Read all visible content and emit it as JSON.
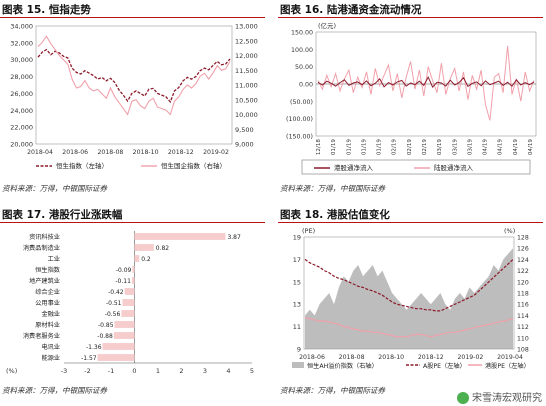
{
  "panels": {
    "p15": {
      "title": "图表 15. 恒指走势",
      "source": "资料来源：万得，中银国际证券"
    },
    "p16": {
      "title": "图表 16. 陆港通资金流动情况",
      "source": "资料来源：万得，中银国际证券"
    },
    "p17": {
      "title": "图表 17. 港股行业涨跌幅",
      "source": "资料来源：万得，中银国际证券"
    },
    "p18": {
      "title": "图表 18. 港股估值变化",
      "source": "资料来源：万得，中银国际证券"
    }
  },
  "watermark": "宋雪涛宏观研究",
  "chart_data": [
    {
      "id": "hsi-trend",
      "type": "line",
      "x_ticks": [
        "2018-04",
        "2018-06",
        "2018-08",
        "2018-10",
        "2018-12",
        "2019-02"
      ],
      "ylim_left": [
        20000,
        34000
      ],
      "yticks_left": [
        "34,000",
        "32,000",
        "30,000",
        "28,000",
        "26,000",
        "24,000",
        "22,000",
        "20,000"
      ],
      "ylim_right": [
        9000,
        13000
      ],
      "yticks_right": [
        "13,000",
        "12,500",
        "12,000",
        "11,500",
        "11,000",
        "10,500",
        "10,000",
        "9,500",
        "9,000"
      ],
      "series": [
        {
          "name": "恒生指数（左轴）",
          "axis": "left",
          "color": "#8b1a2b",
          "dash": true,
          "values": [
            30300,
            30900,
            31200,
            30600,
            31000,
            30800,
            30400,
            30200,
            29000,
            28500,
            28300,
            28700,
            28400,
            28100,
            27700,
            27900,
            27500,
            27800,
            27300,
            26400,
            25800,
            25100,
            26000,
            26300,
            26000,
            25700,
            26500,
            26600,
            26000,
            25800,
            25600,
            25000,
            26300,
            26700,
            27500,
            27900,
            27700,
            28000,
            28700,
            29000,
            28800,
            29300,
            29800,
            29400,
            29500,
            30100
          ]
        },
        {
          "name": "恒生国企指数（右轴）",
          "axis": "right",
          "color": "#f0a0aa",
          "dash": false,
          "values": [
            12300,
            12450,
            12650,
            12400,
            12200,
            12000,
            11850,
            11700,
            11200,
            10900,
            10950,
            11150,
            10900,
            10800,
            10850,
            10700,
            10550,
            10900,
            10600,
            10400,
            10200,
            10000,
            10450,
            10500,
            10300,
            10200,
            10450,
            10550,
            10250,
            10200,
            10150,
            10000,
            10450,
            10600,
            10850,
            11000,
            10900,
            11050,
            11300,
            11400,
            11200,
            11400,
            11650,
            11500,
            11550,
            11800
          ]
        }
      ]
    },
    {
      "id": "connect-flows",
      "type": "line",
      "ylabel": "(亿元)",
      "ylim": [
        -150,
        150
      ],
      "yticks": [
        "150.00",
        "100.00",
        "50.00",
        "0.00",
        "(50.00)",
        "(100.00)",
        "(150.00)"
      ],
      "x_ticks": [
        "12/18",
        "01/19",
        "01/19",
        "01/19",
        "01/19",
        "02/19",
        "02/19",
        "02/19",
        "03/19",
        "03/19",
        "03/19",
        "04/19",
        "04/19",
        "04/19",
        "04/19"
      ],
      "series": [
        {
          "name": "港股通净流入",
          "color": "#8b1a2b",
          "values": [
            5,
            -3,
            8,
            2,
            -6,
            4,
            12,
            -4,
            3,
            6,
            -2,
            9,
            -5,
            2,
            15,
            -8,
            4,
            -3,
            6,
            10,
            -6,
            3,
            -2,
            8,
            -4,
            20,
            -9,
            5,
            3,
            -6,
            11,
            -3,
            4,
            18,
            -7,
            2,
            6,
            -5,
            9,
            -2,
            3,
            8,
            -4,
            5,
            -6,
            12,
            -3,
            4,
            -2,
            6
          ]
        },
        {
          "name": "陆股通净流入",
          "color": "#f0a0aa",
          "values": [
            10,
            -15,
            25,
            -8,
            30,
            -20,
            15,
            40,
            -25,
            20,
            -10,
            35,
            -30,
            45,
            -5,
            25,
            55,
            -20,
            30,
            -40,
            20,
            65,
            -15,
            40,
            -35,
            50,
            10,
            -25,
            60,
            -30,
            15,
            45,
            -20,
            35,
            -45,
            25,
            -15,
            40,
            -60,
            -105,
            20,
            30,
            -25,
            110,
            -30,
            15,
            -50,
            35,
            -20,
            10
          ]
        }
      ]
    },
    {
      "id": "hk-sector-returns",
      "type": "bar",
      "orientation": "horizontal",
      "xlabel": "(%)",
      "xlim": [
        -3,
        5
      ],
      "xticks": [
        "-3",
        "-2",
        "-1",
        "0",
        "1",
        "2",
        "3",
        "4",
        "5"
      ],
      "categories": [
        "资讯科技业",
        "消费品制造业",
        "工业",
        "恒生指数",
        "地产建筑业",
        "综合企业",
        "公用事业",
        "金融业",
        "原材料业",
        "消费者服务业",
        "电讯业",
        "能源业"
      ],
      "values": [
        3.87,
        0.82,
        0.2,
        -0.09,
        -0.11,
        -0.42,
        -0.51,
        -0.56,
        -0.85,
        -0.88,
        -1.36,
        -1.57
      ],
      "value_labels": [
        "3.87",
        "0.82",
        "0.2",
        "-0.09",
        "-0.11",
        "-0.42",
        "-0.51",
        "-0.56",
        "-0.85",
        "-0.88",
        "-1.36",
        "-1.57"
      ],
      "color": "#f6cccc"
    },
    {
      "id": "hk-valuation",
      "type": "area",
      "ylabel_left": "(PE)",
      "ylabel_right": "(%)",
      "ylim_left": [
        9,
        19
      ],
      "yticks_left": [
        "19",
        "17",
        "15",
        "13",
        "11",
        "9"
      ],
      "ylim_right": [
        108,
        128
      ],
      "yticks_right": [
        "128",
        "126",
        "124",
        "122",
        "120",
        "118",
        "116",
        "114",
        "112",
        "110",
        "108"
      ],
      "x_ticks": [
        "2018-06",
        "2018-08",
        "2018-10",
        "2018-12",
        "2019-02",
        "2019-04"
      ],
      "series": [
        {
          "name": "恒生AH溢价指数（右轴）",
          "axis": "right",
          "color": "#bdbdbd",
          "values": [
            114,
            115,
            114,
            116,
            117,
            118,
            116,
            119,
            121,
            120,
            122,
            123,
            121,
            122,
            123,
            121,
            122,
            120,
            118,
            117,
            116,
            115,
            116,
            117,
            118,
            117,
            116,
            117,
            118,
            116,
            115,
            117,
            118,
            117,
            119,
            118,
            119,
            120,
            121,
            123,
            122,
            124,
            125,
            126
          ]
        },
        {
          "name": "A股PE（左轴）",
          "axis": "left",
          "color": "#8b1a2b",
          "dash": true,
          "values": [
            17.0,
            16.7,
            16.5,
            16.3,
            16.0,
            15.8,
            15.5,
            15.3,
            15.2,
            15.0,
            14.8,
            14.6,
            14.5,
            14.3,
            14.2,
            14.0,
            13.8,
            13.5,
            13.2,
            13.0,
            12.9,
            12.8,
            12.7,
            12.6,
            12.6,
            12.5,
            12.5,
            12.4,
            12.4,
            12.6,
            12.8,
            13.0,
            13.2,
            13.4,
            13.6,
            13.8,
            14.2,
            14.6,
            15.0,
            15.4,
            15.8,
            16.2,
            16.6,
            17.0
          ]
        },
        {
          "name": "港股PE（左轴）",
          "axis": "left",
          "color": "#f0a0aa",
          "dash": false,
          "values": [
            11.8,
            11.7,
            11.6,
            11.5,
            11.5,
            11.4,
            11.3,
            11.2,
            11.0,
            10.9,
            10.8,
            10.7,
            10.6,
            10.6,
            10.5,
            10.5,
            10.4,
            10.3,
            10.2,
            10.1,
            10.1,
            10.1,
            10.2,
            10.3,
            10.3,
            10.2,
            10.1,
            10.2,
            10.3,
            10.4,
            10.5,
            10.5,
            10.6,
            10.7,
            10.8,
            10.9,
            11.0,
            11.1,
            11.2,
            11.3,
            11.4,
            11.5,
            11.6,
            11.7
          ]
        }
      ]
    }
  ]
}
